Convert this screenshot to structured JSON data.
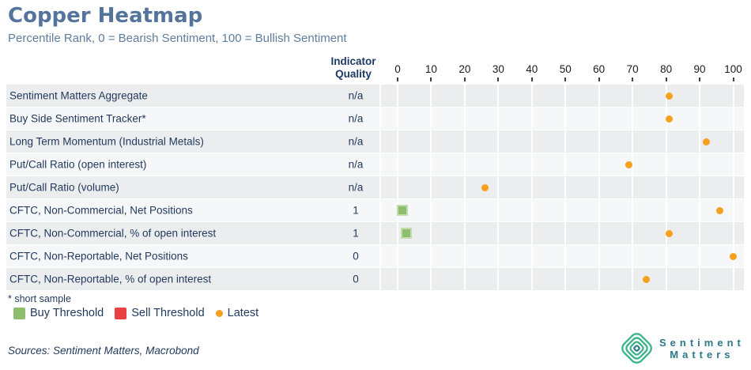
{
  "header": {
    "title": "Copper Heatmap",
    "subtitle": "Percentile Rank, 0 = Bearish Sentiment, 100 = Bullish Sentiment"
  },
  "chart_data": {
    "type": "heatmap",
    "title": "Copper Heatmap",
    "subtitle": "Percentile Rank, 0 = Bearish Sentiment, 100 = Bullish Sentiment",
    "quality_header": "Indicator Quality",
    "x_axis": {
      "min": 0,
      "max": 100,
      "tick_labels": [
        "0",
        "10",
        "20",
        "30",
        "40",
        "50",
        "60",
        "70",
        "80",
        "90",
        "100"
      ]
    },
    "rows": [
      {
        "label": "Sentiment Matters Aggregate",
        "quality": "n/a",
        "latest": 81,
        "buy_threshold": null,
        "sell_threshold": null
      },
      {
        "label": "Buy Side Sentiment Tracker*",
        "quality": "n/a",
        "latest": 81,
        "buy_threshold": null,
        "sell_threshold": null
      },
      {
        "label": "Long Term Momentum (Industrial Metals)",
        "quality": "n/a",
        "latest": 92,
        "buy_threshold": null,
        "sell_threshold": null
      },
      {
        "label": "Put/Call Ratio (open interest)",
        "quality": "n/a",
        "latest": 69,
        "buy_threshold": null,
        "sell_threshold": null
      },
      {
        "label": "Put/Call Ratio (volume)",
        "quality": "n/a",
        "latest": 26,
        "buy_threshold": null,
        "sell_threshold": null
      },
      {
        "label": "CFTC, Non-Commercial, Net Positions",
        "quality": "1",
        "latest": 96,
        "buy_threshold": 1.5,
        "sell_threshold": null
      },
      {
        "label": "CFTC, Non-Commercial, % of open interest",
        "quality": "1",
        "latest": 81,
        "buy_threshold": 2.5,
        "sell_threshold": null
      },
      {
        "label": "CFTC, Non-Reportable, Net Positions",
        "quality": "0",
        "latest": 100,
        "buy_threshold": null,
        "sell_threshold": null
      },
      {
        "label": "CFTC, Non-Reportable, % of open interest",
        "quality": "0",
        "latest": 74,
        "buy_threshold": null,
        "sell_threshold": null
      }
    ],
    "legend": [
      {
        "label": "Buy Threshold",
        "marker": "square",
        "color": "#8dbe6e"
      },
      {
        "label": "Sell Threshold",
        "marker": "square",
        "color": "#ea4043"
      },
      {
        "label": "Latest",
        "marker": "dot",
        "color": "#f7a01e"
      }
    ],
    "footnote": "* short sample",
    "layout": {
      "legend_position": "bottom-left",
      "grid": true
    }
  },
  "footer": {
    "sources": "Sources: Sentiment Matters, Macrobond",
    "logo": {
      "line1": "Sentiment",
      "line2": "Matters"
    }
  },
  "colors": {
    "title": "#54749c",
    "subtitle": "#5f7d9c",
    "row_label": "#223a5e",
    "band_odd": "#ecedef",
    "band_even": "#f6f7f8",
    "latest_dot": "#f7a01e",
    "buy_square": "#8dbe6e",
    "sell_square": "#ea4043",
    "logo_green": "#3db389",
    "logo_teal": "#2d7888"
  }
}
